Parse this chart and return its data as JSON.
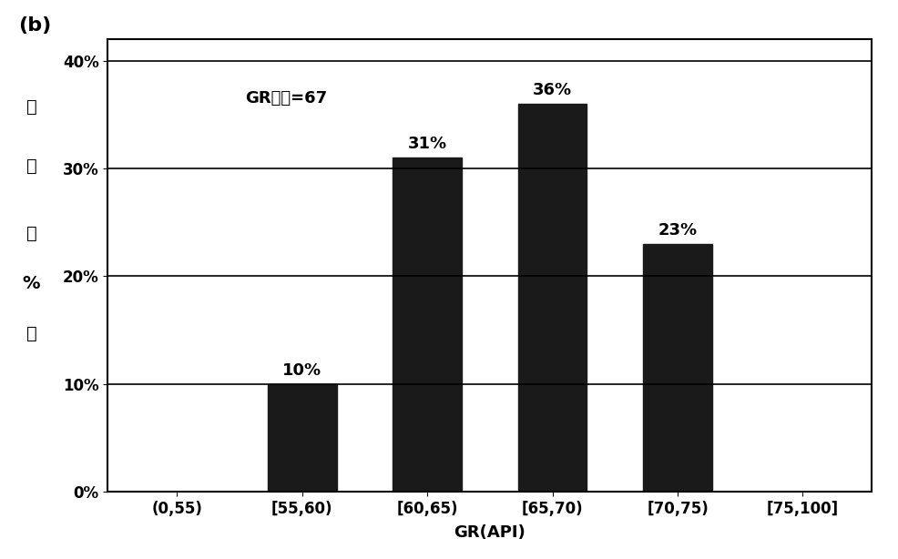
{
  "categories": [
    "(0,55)",
    "[55,60)",
    "[60,65)",
    "[65,70)",
    "[70,75)",
    "[75,100]"
  ],
  "values": [
    0,
    10,
    31,
    36,
    23,
    0
  ],
  "bar_color": "#1a1a1a",
  "title_label": "(b)",
  "annotation": "GR峰値=67",
  "xlabel": "GR(API)",
  "ylabel_chars": [
    "频",
    "率",
    "（",
    "%",
    "）"
  ],
  "yticks": [
    0,
    10,
    20,
    30,
    40
  ],
  "ytick_labels": [
    "0%",
    "10%",
    "20%",
    "30%",
    "40%"
  ],
  "ylim": [
    0,
    42
  ],
  "bar_labels": [
    "",
    "10%",
    "31%",
    "36%",
    "23%",
    ""
  ],
  "background_color": "#ffffff",
  "grid_color": "#000000",
  "figsize": [
    9.87,
    6.14
  ],
  "dpi": 100
}
